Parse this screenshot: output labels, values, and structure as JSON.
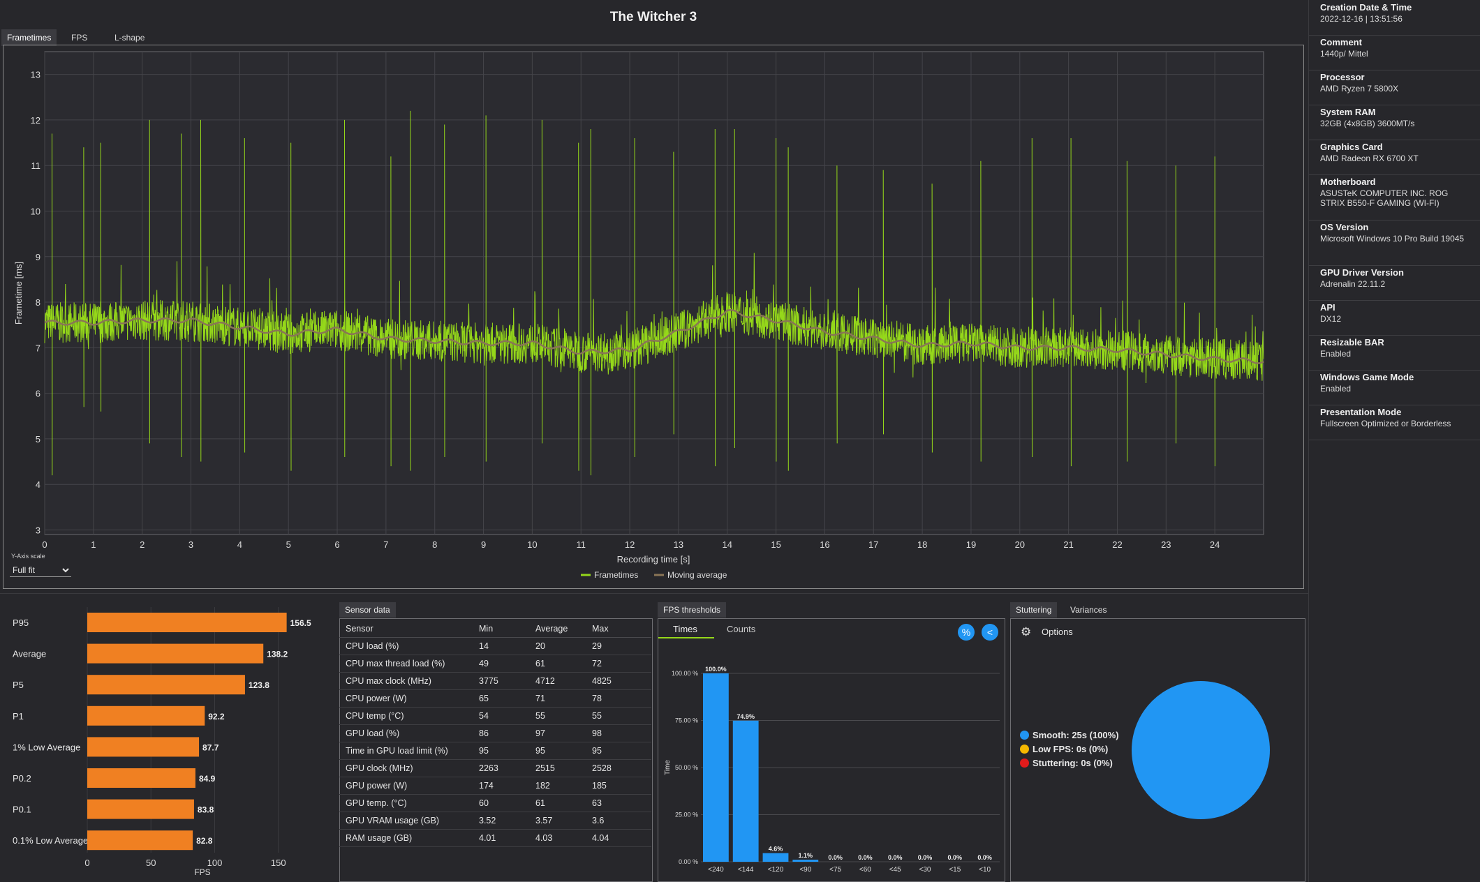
{
  "app": {
    "title": "The Witcher 3"
  },
  "tabs": [
    {
      "label": "Frametimes",
      "active": true
    },
    {
      "label": "FPS",
      "active": false
    },
    {
      "label": "L-shape",
      "active": false
    }
  ],
  "y_axis_scale": {
    "label": "Y-Axis scale",
    "value": "Full fit"
  },
  "info_panel": [
    {
      "label": "Creation Date & Time",
      "value": "2022-12-16  |  13:51:56"
    },
    {
      "label": "Comment",
      "value": "1440p/ Mittel"
    },
    {
      "label": "Processor",
      "value": "AMD Ryzen 7 5800X"
    },
    {
      "label": "System RAM",
      "value": "32GB (4x8GB) 3600MT/s"
    },
    {
      "label": "Graphics Card",
      "value": "AMD Radeon RX 6700 XT"
    },
    {
      "label": "Motherboard",
      "value": "ASUSTeK COMPUTER INC. ROG STRIX B550-F GAMING (WI-FI)"
    },
    {
      "label": "OS Version",
      "value": "Microsoft Windows 10 Pro Build 19045"
    },
    {
      "label": "GPU Driver Version",
      "value": "Adrenalin 22.11.2"
    },
    {
      "label": "API",
      "value": "DX12"
    },
    {
      "label": "Resizable BAR",
      "value": "Enabled"
    },
    {
      "label": "Windows Game Mode",
      "value": "Enabled"
    },
    {
      "label": "Presentation Mode",
      "value": "Fullscreen Optimized or Borderless"
    }
  ],
  "sensor": {
    "tab_label": "Sensor data",
    "headers": [
      "Sensor",
      "Min",
      "Average",
      "Max"
    ],
    "rows": [
      [
        "CPU load (%)",
        "14",
        "20",
        "29"
      ],
      [
        "CPU max thread load (%)",
        "49",
        "61",
        "72"
      ],
      [
        "CPU max clock (MHz)",
        "3775",
        "4712",
        "4825"
      ],
      [
        "CPU power (W)",
        "65",
        "71",
        "78"
      ],
      [
        "CPU temp (°C)",
        "54",
        "55",
        "55"
      ],
      [
        "GPU load (%)",
        "86",
        "97",
        "98"
      ],
      [
        "Time in GPU load limit (%)",
        "95",
        "95",
        "95"
      ],
      [
        "GPU clock (MHz)",
        "2263",
        "2515",
        "2528"
      ],
      [
        "GPU power (W)",
        "174",
        "182",
        "185"
      ],
      [
        "GPU temp. (°C)",
        "60",
        "61",
        "63"
      ],
      [
        "GPU VRAM usage (GB)",
        "3.52",
        "3.57",
        "3.6"
      ],
      [
        "RAM usage (GB)",
        "4.01",
        "4.03",
        "4.04"
      ]
    ]
  },
  "thresholds": {
    "tab_label": "FPS thresholds",
    "subtabs": [
      "Times",
      "Counts"
    ],
    "buttons": {
      "percent": "%",
      "share": "<"
    }
  },
  "stuttering": {
    "tabs": [
      "Stuttering",
      "Variances"
    ],
    "options_label": "Options",
    "legend": [
      {
        "text": "Smooth:  25s (100%)",
        "color": "#2196f3"
      },
      {
        "text": "Low FPS:  0s (0%)",
        "color": "#f5b800"
      },
      {
        "text": "Stuttering:  0s (0%)",
        "color": "#e11b1b"
      }
    ],
    "pie_values": [
      100,
      0,
      0
    ]
  },
  "colors": {
    "frametime": "#95d81a",
    "moving_average": "#8a7556",
    "bar_orange": "#f08022",
    "bar_blue": "#2196f3"
  },
  "chart_data": [
    {
      "type": "line",
      "title": "",
      "xlabel": "Recording time [s]",
      "ylabel": "Frametime [ms]",
      "xlim": [
        0,
        25
      ],
      "ylim": [
        2.9,
        13.5
      ],
      "x_ticks": [
        0,
        1,
        2,
        3,
        4,
        5,
        6,
        7,
        8,
        9,
        10,
        11,
        12,
        13,
        14,
        15,
        16,
        17,
        18,
        19,
        20,
        21,
        22,
        23,
        24
      ],
      "y_ticks": [
        3,
        4,
        5,
        6,
        7,
        8,
        9,
        10,
        11,
        12,
        13
      ],
      "grid": true,
      "legend_position": "bottom-center",
      "series": [
        {
          "name": "Frametimes",
          "baseline": [
            [
              0,
              7.55
            ],
            [
              1,
              7.55
            ],
            [
              2,
              7.6
            ],
            [
              3,
              7.6
            ],
            [
              4,
              7.45
            ],
            [
              5,
              7.3
            ],
            [
              6,
              7.4
            ],
            [
              7,
              7.2
            ],
            [
              8,
              7.15
            ],
            [
              9,
              7.1
            ],
            [
              10,
              7.1
            ],
            [
              11,
              6.9
            ],
            [
              12,
              6.95
            ],
            [
              13,
              7.35
            ],
            [
              14,
              7.8
            ],
            [
              15,
              7.6
            ],
            [
              16,
              7.35
            ],
            [
              17,
              7.2
            ],
            [
              18,
              7.05
            ],
            [
              19,
              7.1
            ],
            [
              20,
              7.0
            ],
            [
              21,
              7.0
            ],
            [
              22,
              6.95
            ],
            [
              23,
              6.85
            ],
            [
              24,
              6.75
            ],
            [
              25,
              6.7
            ]
          ],
          "spikes": [
            [
              0.15,
              11.7,
              4.2
            ],
            [
              0.8,
              11.4,
              5.7
            ],
            [
              1.15,
              11.5,
              5.6
            ],
            [
              2.15,
              12.0,
              4.9
            ],
            [
              2.8,
              11.7,
              4.6
            ],
            [
              3.2,
              12.0,
              4.5
            ],
            [
              4.1,
              11.6,
              4.7
            ],
            [
              5.05,
              11.5,
              4.3
            ],
            [
              6.15,
              12.0,
              4.6
            ],
            [
              7.1,
              11.2,
              4.4
            ],
            [
              7.5,
              12.2,
              4.3
            ],
            [
              8.2,
              11.9,
              4.6
            ],
            [
              9.05,
              12.1,
              4.5
            ],
            [
              10.2,
              12.0,
              4.9
            ],
            [
              10.95,
              11.5,
              4.3
            ],
            [
              11.2,
              11.8,
              4.2
            ],
            [
              12.1,
              11.6,
              4.6
            ],
            [
              12.9,
              11.3,
              5.1
            ],
            [
              13.75,
              11.8,
              4.4
            ],
            [
              14.15,
              11.8,
              4.8
            ],
            [
              15.0,
              11.6,
              4.5
            ],
            [
              15.25,
              11.4,
              4.3
            ],
            [
              16.25,
              11.0,
              4.9
            ],
            [
              17.2,
              10.9,
              5.1
            ],
            [
              18.2,
              10.6,
              4.7
            ],
            [
              19.2,
              11.1,
              4.5
            ],
            [
              20.25,
              11.6,
              4.6
            ],
            [
              21.05,
              11.6,
              4.4
            ],
            [
              22.2,
              11.1,
              4.5
            ],
            [
              23.2,
              11.0,
              4.9
            ],
            [
              24.0,
              11.2,
              4.4
            ]
          ]
        },
        {
          "name": "Moving average"
        }
      ]
    },
    {
      "type": "bar",
      "orientation": "horizontal",
      "categories": [
        "P95",
        "Average",
        "P5",
        "P1",
        "1% Low Average",
        "P0.2",
        "P0.1",
        "0.1% Low Average"
      ],
      "values": [
        156.5,
        138.2,
        123.8,
        92.2,
        87.7,
        84.9,
        83.8,
        82.8
      ],
      "xlabel": "FPS",
      "xlim": [
        0,
        175
      ],
      "x_ticks": [
        0,
        50,
        100,
        150
      ]
    },
    {
      "type": "bar",
      "categories": [
        "<240",
        "<144",
        "<120",
        "<90",
        "<75",
        "<60",
        "<45",
        "<30",
        "<15",
        "<10"
      ],
      "values": [
        100.0,
        74.9,
        4.6,
        1.1,
        0.0,
        0.0,
        0.0,
        0.0,
        0.0,
        0.0
      ],
      "value_labels": [
        "100.0%",
        "74.9%",
        "4.6%",
        "1.1%",
        "0.0%",
        "0.0%",
        "0.0%",
        "0.0%",
        "0.0%",
        "0.0%"
      ],
      "ylabel": "Time",
      "ylim": [
        0,
        100
      ],
      "y_ticks": [
        "0.00 %",
        "25.00 %",
        "50.00 %",
        "75.00 %",
        "100.00 %"
      ]
    }
  ]
}
